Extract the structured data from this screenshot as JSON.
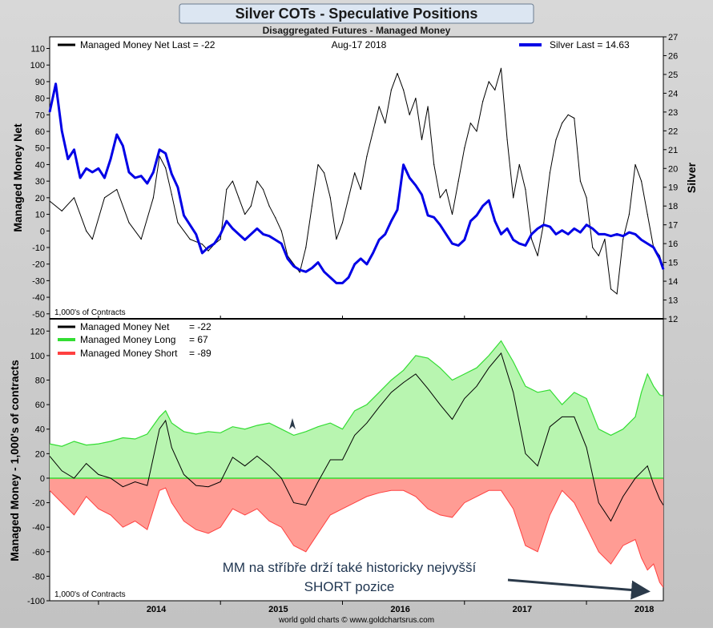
{
  "title": "Silver COTs - Speculative Positions",
  "subtitle": "Disaggregated Futures - Managed Money",
  "date_label": "Aug-17  2018",
  "footer": "world gold charts © www.goldchartsrus.com",
  "colors": {
    "background": "#c9c9c9",
    "title_bg": "#dce6f2",
    "net": "#000000",
    "silver": "#0000e6",
    "long": "#33dd33",
    "long_fill": "#b8f5b0",
    "short": "#ff4040",
    "short_fill": "#ff9c94"
  },
  "top_panel": {
    "legend_net": "Managed Money Net   Last = -22",
    "legend_silver": "Silver Last = 14.63",
    "ylabel_left": "Managed Money Net",
    "ylabel_right": "Silver",
    "units_note": "1,000's of Contracts"
  },
  "bottom_panel": {
    "legend": [
      {
        "label": "Managed Money Net",
        "value": "=  -22"
      },
      {
        "label": "Managed Money Long",
        "value": "=  67"
      },
      {
        "label": "Managed Money Short",
        "value": "=  -89"
      }
    ],
    "ylabel": "Managed Money - 1,000's of contracts",
    "units_note": "1,000's of Contracts",
    "annotation_line1": "MM na stříbře drží také historicky nejvyšší",
    "annotation_line2": "SHORT pozice"
  },
  "chart_data": [
    {
      "type": "line",
      "title": "Silver COTs - Speculative Positions",
      "subtitle": "Disaggregated Futures - Managed Money",
      "xlabel": "",
      "ylabel": "Managed Money Net",
      "y2label": "Silver",
      "xlim": [
        2013.6,
        2018.63
      ],
      "ylim": [
        -53,
        117
      ],
      "y2lim": [
        12,
        27
      ],
      "yticks": [
        -50,
        -40,
        -30,
        -20,
        -10,
        0,
        10,
        20,
        30,
        40,
        50,
        60,
        70,
        80,
        90,
        100,
        110
      ],
      "y2ticks": [
        12,
        13,
        14,
        15,
        16,
        17,
        18,
        19,
        20,
        21,
        22,
        23,
        24,
        25,
        26,
        27
      ],
      "xticks": [
        "2014",
        "2015",
        "2016",
        "2017",
        "2018"
      ],
      "grid": false,
      "legend": "top",
      "series": [
        {
          "name": "Managed Money Net",
          "axis": "left",
          "x": [
            2013.6,
            2013.7,
            2013.8,
            2013.9,
            2013.95,
            2014.05,
            2014.15,
            2014.25,
            2014.35,
            2014.45,
            2014.5,
            2014.55,
            2014.6,
            2014.65,
            2014.75,
            2014.85,
            2014.9,
            2014.95,
            2015.0,
            2015.05,
            2015.1,
            2015.15,
            2015.2,
            2015.25,
            2015.3,
            2015.35,
            2015.4,
            2015.45,
            2015.5,
            2015.55,
            2015.6,
            2015.65,
            2015.7,
            2015.75,
            2015.8,
            2015.85,
            2015.9,
            2015.95,
            2016.0,
            2016.05,
            2016.1,
            2016.15,
            2016.2,
            2016.25,
            2016.3,
            2016.35,
            2016.4,
            2016.45,
            2016.5,
            2016.55,
            2016.6,
            2016.65,
            2016.7,
            2016.75,
            2016.8,
            2016.85,
            2016.9,
            2016.95,
            2017.0,
            2017.05,
            2017.1,
            2017.15,
            2017.2,
            2017.25,
            2017.3,
            2017.35,
            2017.4,
            2017.45,
            2017.5,
            2017.55,
            2017.6,
            2017.65,
            2017.7,
            2017.75,
            2017.8,
            2017.85,
            2017.9,
            2017.95,
            2018.0,
            2018.05,
            2018.1,
            2018.15,
            2018.2,
            2018.25,
            2018.3,
            2018.35,
            2018.4,
            2018.45,
            2018.5,
            2018.55,
            2018.6,
            2018.63
          ],
          "values": [
            18,
            12,
            20,
            0,
            -5,
            20,
            25,
            5,
            -5,
            20,
            45,
            38,
            22,
            5,
            -5,
            -8,
            -12,
            -8,
            -5,
            25,
            30,
            20,
            10,
            15,
            30,
            25,
            15,
            8,
            0,
            -15,
            -20,
            -25,
            -10,
            15,
            40,
            35,
            20,
            -5,
            5,
            20,
            35,
            25,
            45,
            60,
            75,
            65,
            85,
            95,
            85,
            70,
            80,
            55,
            75,
            40,
            20,
            25,
            10,
            30,
            50,
            65,
            60,
            78,
            90,
            85,
            98,
            55,
            20,
            40,
            25,
            -5,
            -15,
            5,
            35,
            55,
            65,
            70,
            68,
            30,
            20,
            -10,
            -15,
            -5,
            -35,
            -38,
            -5,
            10,
            40,
            30,
            10,
            -10,
            -15,
            -22
          ]
        },
        {
          "name": "Silver",
          "axis": "right",
          "x": [
            2013.6,
            2013.65,
            2013.7,
            2013.75,
            2013.8,
            2013.85,
            2013.9,
            2013.95,
            2014.0,
            2014.05,
            2014.1,
            2014.15,
            2014.2,
            2014.25,
            2014.3,
            2014.35,
            2014.4,
            2014.45,
            2014.5,
            2014.55,
            2014.6,
            2014.65,
            2014.7,
            2014.75,
            2014.8,
            2014.85,
            2014.9,
            2014.95,
            2015.0,
            2015.05,
            2015.1,
            2015.15,
            2015.2,
            2015.25,
            2015.3,
            2015.35,
            2015.4,
            2015.45,
            2015.5,
            2015.55,
            2015.6,
            2015.65,
            2015.7,
            2015.75,
            2015.8,
            2015.85,
            2015.9,
            2015.95,
            2016.0,
            2016.05,
            2016.1,
            2016.15,
            2016.2,
            2016.25,
            2016.3,
            2016.35,
            2016.4,
            2016.45,
            2016.5,
            2016.55,
            2016.6,
            2016.65,
            2016.7,
            2016.75,
            2016.8,
            2016.85,
            2016.9,
            2016.95,
            2017.0,
            2017.05,
            2017.1,
            2017.15,
            2017.2,
            2017.25,
            2017.3,
            2017.35,
            2017.4,
            2017.45,
            2017.5,
            2017.55,
            2017.6,
            2017.65,
            2017.7,
            2017.75,
            2017.8,
            2017.85,
            2017.9,
            2017.95,
            2018.0,
            2018.05,
            2018.1,
            2018.15,
            2018.2,
            2018.25,
            2018.3,
            2018.35,
            2018.4,
            2018.45,
            2018.5,
            2018.55,
            2018.6,
            2018.63
          ],
          "values": [
            23,
            24.5,
            22,
            20.5,
            21,
            19.5,
            20,
            19.8,
            20,
            19.5,
            20.5,
            21.8,
            21.2,
            19.8,
            19.5,
            19.6,
            19.2,
            19.8,
            21,
            20.8,
            19.7,
            19,
            17.5,
            17,
            16.5,
            15.5,
            15.8,
            16,
            16.5,
            17.2,
            16.8,
            16.5,
            16.2,
            16.5,
            16.8,
            16.5,
            16.4,
            16.2,
            16,
            15.2,
            14.8,
            14.6,
            14.5,
            14.7,
            15,
            14.5,
            14.2,
            13.9,
            13.9,
            14.2,
            14.9,
            15.2,
            14.9,
            15.5,
            16.2,
            16.5,
            17.2,
            17.8,
            20.2,
            19.5,
            19.1,
            18.6,
            17.5,
            17.4,
            17,
            16.5,
            16,
            15.9,
            16.2,
            17.2,
            17.5,
            18,
            18.3,
            17.2,
            16.5,
            16.8,
            16.2,
            16,
            15.9,
            16.5,
            16.8,
            17,
            16.9,
            16.5,
            16.7,
            16.5,
            16.8,
            16.6,
            17,
            16.8,
            16.5,
            16.5,
            16.4,
            16.5,
            16.4,
            16.6,
            16.5,
            16.2,
            16,
            15.8,
            15.2,
            14.63
          ]
        }
      ]
    },
    {
      "type": "area",
      "title": "",
      "xlabel": "",
      "ylabel": "Managed Money - 1,000's of contracts",
      "xlim": [
        2013.6,
        2018.63
      ],
      "ylim": [
        -100,
        130
      ],
      "yticks": [
        -100,
        -80,
        -60,
        -40,
        -20,
        0,
        20,
        40,
        60,
        80,
        100,
        120
      ],
      "xticks": [
        "2014",
        "2015",
        "2016",
        "2017",
        "2018"
      ],
      "grid": false,
      "legend": "top-left",
      "series": [
        {
          "name": "Managed Money Long",
          "x": [
            2013.6,
            2013.7,
            2013.8,
            2013.9,
            2014.0,
            2014.1,
            2014.2,
            2014.3,
            2014.4,
            2014.5,
            2014.55,
            2014.6,
            2014.7,
            2014.8,
            2014.9,
            2015.0,
            2015.1,
            2015.2,
            2015.3,
            2015.4,
            2015.5,
            2015.6,
            2015.7,
            2015.8,
            2015.9,
            2016.0,
            2016.1,
            2016.2,
            2016.3,
            2016.4,
            2016.5,
            2016.6,
            2016.7,
            2016.8,
            2016.9,
            2017.0,
            2017.1,
            2017.2,
            2017.3,
            2017.4,
            2017.5,
            2017.6,
            2017.7,
            2017.8,
            2017.9,
            2018.0,
            2018.1,
            2018.2,
            2018.3,
            2018.4,
            2018.45,
            2018.5,
            2018.55,
            2018.6,
            2018.63
          ],
          "values": [
            28,
            26,
            30,
            27,
            28,
            30,
            33,
            32,
            36,
            50,
            55,
            45,
            38,
            36,
            38,
            37,
            42,
            40,
            43,
            45,
            40,
            35,
            38,
            42,
            45,
            40,
            55,
            60,
            70,
            80,
            88,
            100,
            98,
            90,
            80,
            85,
            90,
            100,
            112,
            95,
            75,
            70,
            72,
            60,
            70,
            65,
            40,
            35,
            40,
            50,
            70,
            85,
            75,
            68,
            67
          ]
        },
        {
          "name": "Managed Money Short",
          "x": [
            2013.6,
            2013.7,
            2013.8,
            2013.9,
            2014.0,
            2014.1,
            2014.2,
            2014.3,
            2014.4,
            2014.5,
            2014.55,
            2014.6,
            2014.7,
            2014.8,
            2014.9,
            2015.0,
            2015.1,
            2015.2,
            2015.3,
            2015.4,
            2015.5,
            2015.6,
            2015.7,
            2015.8,
            2015.9,
            2016.0,
            2016.1,
            2016.2,
            2016.3,
            2016.4,
            2016.5,
            2016.6,
            2016.7,
            2016.8,
            2016.9,
            2017.0,
            2017.1,
            2017.2,
            2017.3,
            2017.4,
            2017.5,
            2017.6,
            2017.7,
            2017.8,
            2017.9,
            2018.0,
            2018.1,
            2018.2,
            2018.3,
            2018.4,
            2018.45,
            2018.5,
            2018.55,
            2018.6,
            2018.63
          ],
          "values": [
            -10,
            -20,
            -30,
            -15,
            -25,
            -30,
            -40,
            -35,
            -42,
            -10,
            -8,
            -20,
            -35,
            -42,
            -45,
            -40,
            -25,
            -30,
            -25,
            -35,
            -40,
            -55,
            -60,
            -45,
            -30,
            -25,
            -20,
            -15,
            -12,
            -10,
            -10,
            -15,
            -25,
            -30,
            -32,
            -20,
            -15,
            -10,
            -10,
            -25,
            -55,
            -60,
            -30,
            -10,
            -20,
            -40,
            -60,
            -70,
            -55,
            -50,
            -65,
            -75,
            -70,
            -85,
            -89
          ]
        },
        {
          "name": "Managed Money Net",
          "x": [
            2013.6,
            2013.7,
            2013.8,
            2013.9,
            2014.0,
            2014.1,
            2014.2,
            2014.3,
            2014.4,
            2014.5,
            2014.55,
            2014.6,
            2014.7,
            2014.8,
            2014.9,
            2015.0,
            2015.1,
            2015.2,
            2015.3,
            2015.4,
            2015.5,
            2015.6,
            2015.7,
            2015.8,
            2015.9,
            2016.0,
            2016.1,
            2016.2,
            2016.3,
            2016.4,
            2016.5,
            2016.6,
            2016.7,
            2016.8,
            2016.9,
            2017.0,
            2017.1,
            2017.2,
            2017.3,
            2017.4,
            2017.5,
            2017.6,
            2017.7,
            2017.8,
            2017.9,
            2018.0,
            2018.1,
            2018.2,
            2018.3,
            2018.4,
            2018.45,
            2018.5,
            2018.55,
            2018.6,
            2018.63
          ],
          "values": [
            18,
            6,
            0,
            12,
            3,
            0,
            -7,
            -3,
            -6,
            40,
            47,
            25,
            3,
            -6,
            -7,
            -3,
            17,
            10,
            18,
            10,
            0,
            -20,
            -22,
            -3,
            15,
            15,
            35,
            45,
            58,
            70,
            78,
            85,
            73,
            60,
            48,
            65,
            75,
            90,
            102,
            70,
            20,
            10,
            42,
            50,
            50,
            25,
            -20,
            -35,
            -15,
            0,
            5,
            10,
            -5,
            -17,
            -22
          ]
        }
      ]
    }
  ]
}
